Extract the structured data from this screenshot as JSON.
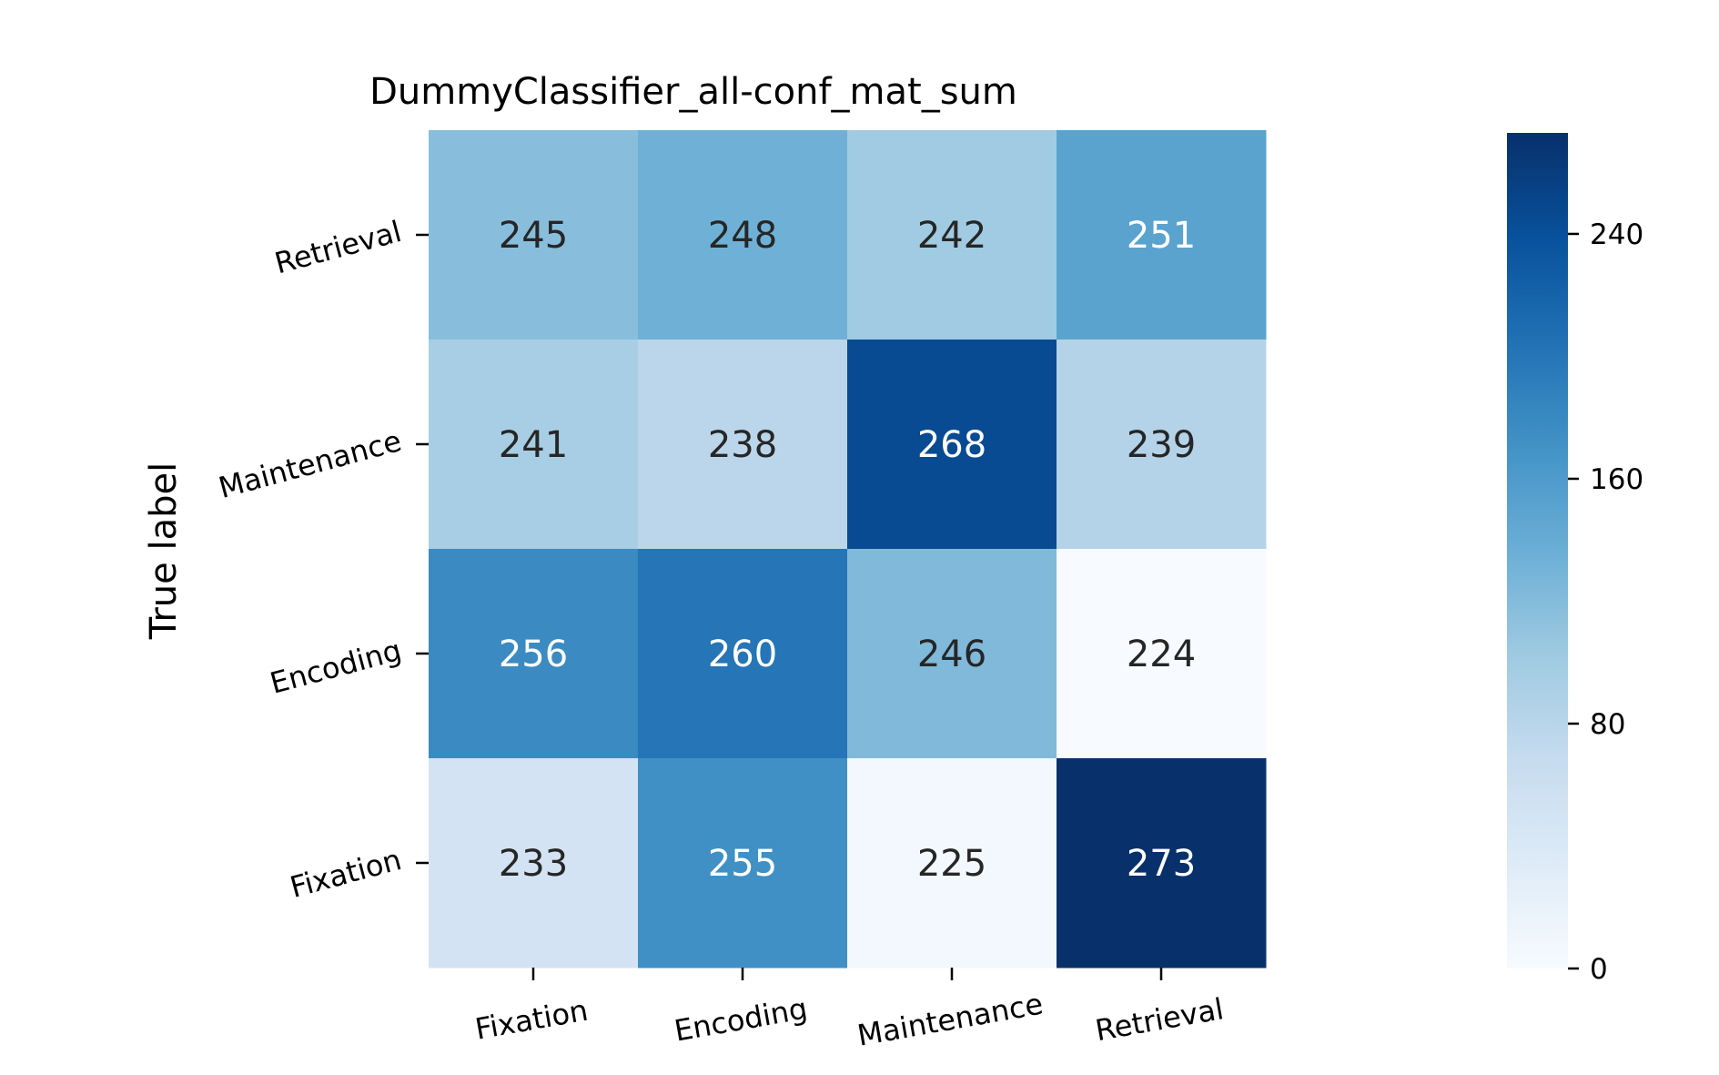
{
  "chart_data": {
    "type": "heatmap",
    "title": "DummyClassifier_all-conf_mat_sum",
    "xlabel": "",
    "ylabel": "True label",
    "x_categories": [
      "Fixation",
      "Encoding",
      "Maintenance",
      "Retrieval"
    ],
    "y_categories": [
      "Retrieval",
      "Maintenance",
      "Encoding",
      "Fixation"
    ],
    "values": [
      [
        245,
        248,
        242,
        251
      ],
      [
        241,
        238,
        268,
        239
      ],
      [
        256,
        260,
        246,
        224
      ],
      [
        233,
        255,
        225,
        273
      ]
    ],
    "colormap": "Blues",
    "color_range": [
      224,
      273
    ],
    "colorbar": {
      "ticks": [
        "0",
        "80",
        "160",
        "240"
      ],
      "range": [
        0,
        273
      ]
    },
    "colors": {
      "dark_text": "#262626",
      "light_text": "#ffffff"
    }
  }
}
